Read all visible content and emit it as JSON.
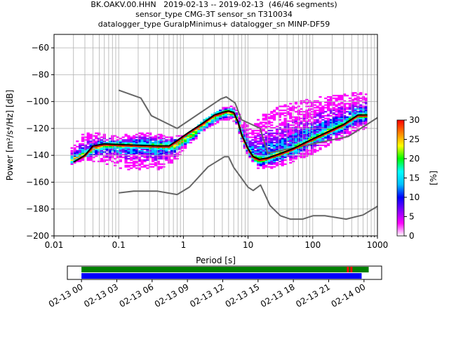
{
  "title_lines": [
    "BK.OAKV.00.HHN   2019-02-13 -- 2019-02-13  (46/46 segments)",
    "sensor_type CMG-3T sensor_sn T310034",
    "datalogger_type GuralpMinimus+ datalogger_sn MINP-DF59"
  ],
  "chart_data": [
    {
      "type": "heatmap",
      "xlabel": "Period [s]",
      "ylabel": "Power [m²/s⁴/Hz] [dB]",
      "xscale": "log",
      "xlim": [
        0.01,
        1000
      ],
      "ylim": [
        -200,
        -50
      ],
      "xtick_labels": [
        "0.01",
        "0.1",
        "1",
        "10",
        "100",
        "1000"
      ],
      "ytick_labels": [
        "−200",
        "−180",
        "−160",
        "−140",
        "−120",
        "−100",
        "−80",
        "−60"
      ],
      "grid": true,
      "colorbar": {
        "label": "[%]",
        "range": [
          0,
          30
        ],
        "tick_labels": [
          "0",
          "5",
          "10",
          "15",
          "20",
          "25",
          "30"
        ],
        "colormap": [
          "#ffffff",
          "#ff00ff",
          "#8000ff",
          "#0000ff",
          "#00bfff",
          "#00ffff",
          "#00ff00",
          "#ffff00",
          "#ff8000",
          "#ff0000"
        ]
      },
      "noise_model_high": {
        "color": "#666666",
        "x": [
          0.1,
          0.22,
          0.32,
          0.8,
          3.8,
          4.6,
          6.3,
          7.9,
          15.4,
          20,
          354.8,
          1000
        ],
        "y": [
          -91.5,
          -97.4,
          -110.5,
          -120,
          -98,
          -96.5,
          -101,
          -113.5,
          -120,
          -138.5,
          -126,
          -112
        ]
      },
      "noise_model_low": {
        "color": "#666666",
        "x": [
          0.1,
          0.17,
          0.4,
          0.8,
          1.24,
          2.4,
          4.3,
          5,
          6,
          10,
          12,
          15.6,
          21.9,
          31.6,
          45,
          70,
          101,
          154,
          328,
          600,
          1000
        ],
        "y": [
          -168,
          -166.7,
          -166.7,
          -169.2,
          -163.7,
          -148.6,
          -141.1,
          -141.1,
          -149,
          -163.8,
          -166.2,
          -162.1,
          -177.5,
          -185,
          -187.5,
          -187.5,
          -185,
          -185,
          -187.5,
          -184.4,
          -178
        ]
      },
      "mean_psd": {
        "color": "#000000",
        "x": [
          0.02,
          0.03,
          0.04,
          0.06,
          0.1,
          0.2,
          0.4,
          0.6,
          0.8,
          1.2,
          2,
          3,
          4,
          5,
          6,
          7,
          8,
          10,
          12,
          15,
          20,
          30,
          50,
          80,
          120,
          200,
          300,
          500,
          700
        ],
        "y": [
          -145,
          -140,
          -133,
          -131.5,
          -132,
          -132.5,
          -133,
          -133,
          -129,
          -123,
          -116,
          -110,
          -108,
          -107,
          -108,
          -115,
          -125,
          -135,
          -141,
          -143,
          -142,
          -139,
          -135,
          -130,
          -126,
          -121,
          -117,
          -110,
          -110
        ]
      },
      "mode_psd": {
        "color": "#ff0000",
        "x": [
          0.02,
          0.03,
          0.04,
          0.06,
          0.1,
          0.2,
          0.4,
          0.6,
          0.8,
          1.2,
          2,
          3,
          4,
          5,
          6,
          7,
          8,
          10,
          12,
          15,
          20,
          30,
          50,
          80,
          120,
          200,
          300,
          500,
          700
        ],
        "y": [
          -145,
          -141,
          -134,
          -132.5,
          -133,
          -133.5,
          -134,
          -134,
          -130,
          -124,
          -117,
          -111,
          -109,
          -107.5,
          -109,
          -116,
          -126,
          -136,
          -142,
          -144,
          -143,
          -140,
          -136,
          -131,
          -127,
          -122,
          -118,
          -111,
          -111
        ]
      },
      "density_band": {
        "x": [
          0.018,
          0.03,
          0.05,
          0.1,
          0.2,
          0.4,
          0.7,
          1,
          1.5,
          2,
          3,
          4,
          5,
          6,
          7,
          8,
          10,
          12,
          15,
          20,
          30,
          50,
          80,
          120,
          200,
          300,
          500,
          700
        ],
        "upper": [
          -135,
          -123,
          -124,
          -126,
          -123,
          -123,
          -125,
          -125,
          -120,
          -114,
          -109,
          -105,
          -103,
          -104,
          -108,
          -114,
          -118,
          -118,
          -112,
          -107,
          -104,
          -101,
          -99,
          -97,
          -96,
          -95,
          -93,
          -93
        ],
        "lower": [
          -147,
          -144,
          -145,
          -149,
          -151,
          -151,
          -146,
          -136,
          -129,
          -123,
          -117,
          -114,
          -113,
          -114,
          -121,
          -130,
          -140,
          -146,
          -150,
          -150,
          -148,
          -145,
          -141,
          -137,
          -131,
          -127,
          -122,
          -119
        ],
        "core_upper": [
          -142,
          -136,
          -131,
          -130,
          -130,
          -130,
          -130,
          -126,
          -120,
          -114,
          -108,
          -106,
          -105,
          -106,
          -112,
          -122,
          -132,
          -138,
          -140,
          -139,
          -136,
          -132,
          -127,
          -123,
          -118,
          -114,
          -108,
          -108
        ],
        "core_lower": [
          -146,
          -141,
          -136,
          -135,
          -135,
          -136,
          -136,
          -132,
          -126,
          -120,
          -114,
          -112,
          -110,
          -111,
          -118,
          -128,
          -138,
          -144,
          -147,
          -145,
          -142,
          -138,
          -133,
          -129,
          -124,
          -120,
          -113,
          -113
        ]
      }
    },
    {
      "type": "bar",
      "title": "",
      "xtick_labels": [
        "02-13 00",
        "02-13 03",
        "02-13 06",
        "02-13 09",
        "02-13 12",
        "02-13 15",
        "02-13 18",
        "02-13 21",
        "02-14 00"
      ],
      "time_range_hours": [
        -1.2,
        25.5
      ],
      "rows": [
        {
          "name": "",
          "color": "#008000",
          "start_hour": 0,
          "end_hour": 24.4
        },
        {
          "name": "",
          "color": "#0000ff",
          "start_hour": 0,
          "end_hour": 23.8
        }
      ],
      "marks": [
        {
          "color": "#ff0000",
          "hour": 22.6
        },
        {
          "color": "#ff0000",
          "hour": 22.9
        }
      ]
    }
  ]
}
